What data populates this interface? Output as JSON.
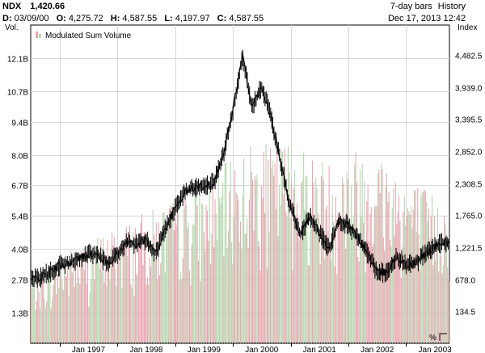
{
  "header": {
    "symbol": "NDX",
    "last": "1,420.66",
    "bars_label": "7-day bars",
    "history_label": "History",
    "date_label": "D:",
    "date_value": "03/09/00",
    "open_label": "O:",
    "open_value": "4,275.72",
    "high_label": "H:",
    "high_value": "4,587.55",
    "low_label": "L:",
    "low_value": "4,197.97",
    "close_label": "C:",
    "close_value": "4,587.55",
    "timestamp": "Dec 17, 2013 12:42"
  },
  "axes": {
    "left_title": "Vol.",
    "right_title": "Index",
    "corner_label": "%"
  },
  "colors": {
    "up_volume": "#b7d7b0",
    "down_volume": "#e8a8b2",
    "price": "#000000",
    "grid": "#d8d8d8",
    "frame": "#000000"
  },
  "chart_data": {
    "type": "line",
    "legend": "Modulated Sum Volume",
    "legend_position": "top-left",
    "grid": true,
    "x": {
      "range": [
        "1996-07",
        "2003-10"
      ],
      "tick_labels": [
        "Jan 1997",
        "Jan 1998",
        "Jan 1999",
        "Jan 2000",
        "Jan 2001",
        "Jan 2002",
        "Jan 2003"
      ]
    },
    "y_left": {
      "title": "Vol.",
      "unit": "B",
      "range": [
        0,
        13.5
      ],
      "ticks": [
        1.3,
        2.7,
        4.0,
        5.4,
        6.7,
        8.0,
        9.4,
        10.7,
        12.1
      ],
      "tick_labels": [
        "1.3B",
        "2.7B",
        "4.0B",
        "5.4B",
        "6.7B",
        "8.0B",
        "9.4B",
        "10.7B",
        "12.1B"
      ]
    },
    "y_right": {
      "title": "Index",
      "range": [
        -410,
        4990
      ],
      "ticks": [
        134.5,
        678.0,
        1221.5,
        1765.0,
        2308.5,
        2852.0,
        3395.5,
        3939.0,
        4482.5
      ],
      "tick_labels": [
        "134.5",
        "678.0",
        "1,221.5",
        "1,765.0",
        "2,308.5",
        "2,852.0",
        "3,395.5",
        "3,939.0",
        "4,482.5"
      ]
    },
    "series": [
      {
        "name": "Modulated Sum Volume",
        "axis": "left",
        "points": [
          [
            "1996-07",
            2.7
          ],
          [
            "1996-09",
            2.8
          ],
          [
            "1996-11",
            3.0
          ],
          [
            "1997-01",
            3.3
          ],
          [
            "1997-03",
            3.4
          ],
          [
            "1997-05",
            3.6
          ],
          [
            "1997-07",
            3.8
          ],
          [
            "1997-09",
            3.7
          ],
          [
            "1997-11",
            3.4
          ],
          [
            "1998-01",
            3.8
          ],
          [
            "1998-03",
            4.3
          ],
          [
            "1998-05",
            4.2
          ],
          [
            "1998-07",
            4.4
          ],
          [
            "1998-09",
            3.8
          ],
          [
            "1998-11",
            4.9
          ],
          [
            "1999-01",
            5.7
          ],
          [
            "1999-03",
            6.4
          ],
          [
            "1999-05",
            6.6
          ],
          [
            "1999-07",
            6.7
          ],
          [
            "1999-09",
            6.8
          ],
          [
            "1999-11",
            8.0
          ],
          [
            "2000-01",
            9.9
          ],
          [
            "2000-03",
            12.2
          ],
          [
            "2000-05",
            10.0
          ],
          [
            "2000-07",
            10.9
          ],
          [
            "2000-09",
            9.6
          ],
          [
            "2000-11",
            7.6
          ],
          [
            "2001-01",
            5.8
          ],
          [
            "2001-03",
            4.6
          ],
          [
            "2001-05",
            5.4
          ],
          [
            "2001-07",
            4.7
          ],
          [
            "2001-09",
            4.0
          ],
          [
            "2001-11",
            5.2
          ],
          [
            "2002-01",
            5.0
          ],
          [
            "2002-03",
            4.5
          ],
          [
            "2002-05",
            3.8
          ],
          [
            "2002-07",
            3.0
          ],
          [
            "2002-09",
            3.0
          ],
          [
            "2002-11",
            3.7
          ],
          [
            "2003-01",
            3.3
          ],
          [
            "2003-03",
            3.4
          ],
          [
            "2003-05",
            3.8
          ],
          [
            "2003-07",
            4.1
          ],
          [
            "2003-09",
            4.3
          ]
        ]
      },
      {
        "name": "",
        "axis": "left",
        "kind": "volume",
        "envelope": [
          [
            "1996-07",
            3.0
          ],
          [
            "1997-01",
            3.8
          ],
          [
            "1997-07",
            4.4
          ],
          [
            "1998-01",
            5.0
          ],
          [
            "1998-07",
            5.6
          ],
          [
            "1999-01",
            6.2
          ],
          [
            "1999-07",
            6.8
          ],
          [
            "2000-01",
            8.0
          ],
          [
            "2000-05",
            8.6
          ],
          [
            "2000-09",
            8.4
          ],
          [
            "2001-01",
            8.8
          ],
          [
            "2001-05",
            8.2
          ],
          [
            "2001-09",
            7.8
          ],
          [
            "2002-01",
            8.2
          ],
          [
            "2002-05",
            8.6
          ],
          [
            "2002-09",
            8.0
          ],
          [
            "2003-01",
            7.2
          ],
          [
            "2003-05",
            6.6
          ],
          [
            "2003-09",
            6.2
          ]
        ]
      }
    ]
  }
}
